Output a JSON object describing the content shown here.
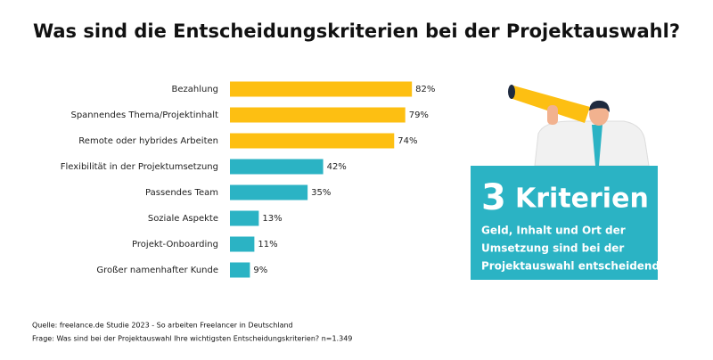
{
  "chart_data": {
    "type": "bar",
    "orientation": "horizontal",
    "title": "Was sind die Entscheidungskriterien bei der Projektauswahl?",
    "categories": [
      "Bezahlung",
      "Spannendes Thema/Projektinhalt",
      "Remote oder hybrides Arbeiten",
      "Flexibilität in der Projektumsetzung",
      "Passendes Team",
      "Soziale Aspekte",
      "Projekt-Onboarding",
      "Großer namenhafter Kunde"
    ],
    "values": [
      82,
      79,
      74,
      42,
      35,
      13,
      11,
      9
    ],
    "value_labels": [
      "82%",
      "79%",
      "74%",
      "42%",
      "35%",
      "13%",
      "11%",
      "9%"
    ],
    "colors": [
      "#fdbf12",
      "#fdbf12",
      "#fdbf12",
      "#2bb3c4",
      "#2bb3c4",
      "#2bb3c4",
      "#2bb3c4",
      "#2bb3c4"
    ]
  },
  "callout": {
    "number": 3,
    "heading": "Kriterien",
    "lines": [
      "Geld, Inhalt und Ort der",
      "Umsetzung sind bei der",
      "Projektauswahl entscheidend."
    ]
  },
  "footer": {
    "source": "Quelle: freelance.de Studie 2023 - So arbeiten Freelancer in Deutschland",
    "question": "Frage: Was sind bei der Projektauswahl Ihre wichtigsten Entscheidungskriterien? n=1.349"
  }
}
